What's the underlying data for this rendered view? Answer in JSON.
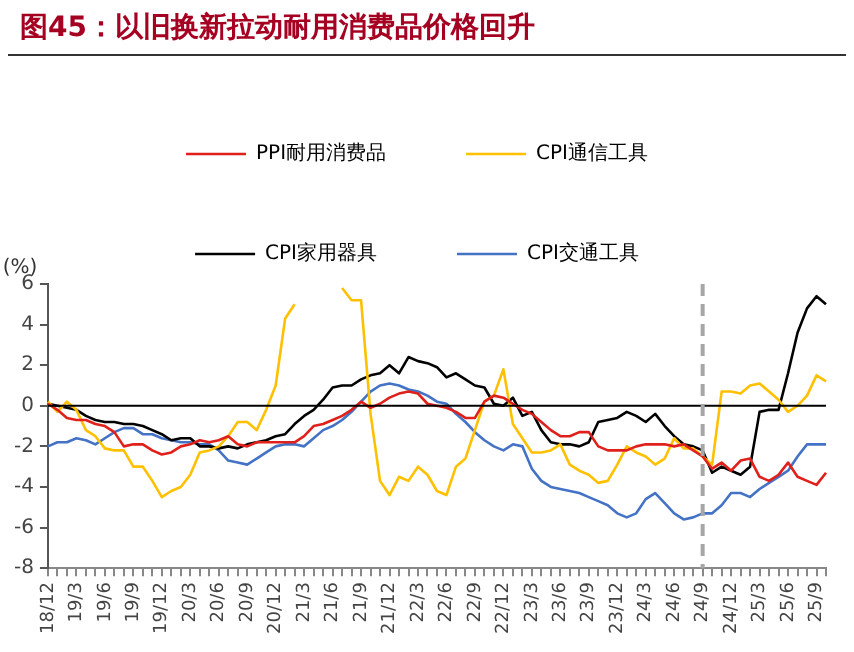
{
  "chart_data": {
    "type": "line",
    "title": "图45：以旧换新拉动耐用消费品价格回升",
    "ylabel": "(%)",
    "categories": [
      "18/12",
      null,
      null,
      "19/3",
      null,
      null,
      "19/6",
      null,
      null,
      "19/9",
      null,
      null,
      "19/12",
      null,
      null,
      "20/3",
      null,
      null,
      "20/6",
      null,
      null,
      "20/9",
      null,
      null,
      "20/12",
      null,
      null,
      "21/3",
      null,
      null,
      "21/6",
      null,
      null,
      "21/9",
      null,
      null,
      "21/12",
      null,
      null,
      "22/3",
      null,
      null,
      "22/6",
      null,
      null,
      "22/9",
      null,
      null,
      "22/12",
      null,
      null,
      "23/3",
      null,
      null,
      "23/6",
      null,
      null,
      "23/9",
      null,
      null,
      "23/12",
      null,
      null,
      "24/3",
      null,
      null,
      "24/6",
      null,
      null,
      "24/9",
      null,
      null,
      "24/12",
      null,
      null,
      "25/3",
      null,
      null,
      "25/6",
      null,
      null,
      "25/9",
      null
    ],
    "series": [
      {
        "name": "PPI耐用消费品",
        "color": "#e0201b",
        "values": [
          0.1,
          -0.2,
          -0.6,
          -0.7,
          -0.7,
          -0.9,
          -1.0,
          -1.3,
          -2.0,
          -1.9,
          -1.9,
          -2.2,
          -2.4,
          -2.3,
          -2.0,
          -1.9,
          -1.7,
          -1.8,
          -1.7,
          -1.5,
          -1.9,
          -2.0,
          -1.8,
          -1.8,
          -1.8,
          -1.8,
          -1.8,
          -1.5,
          -1.0,
          -0.9,
          -0.7,
          -0.5,
          -0.2,
          0.2,
          -0.1,
          0.1,
          0.4,
          0.6,
          0.7,
          0.6,
          0.1,
          0.0,
          -0.1,
          -0.3,
          -0.6,
          -0.6,
          0.2,
          0.5,
          0.4,
          0.1,
          -0.2,
          -0.4,
          -0.8,
          -1.2,
          -1.5,
          -1.5,
          -1.3,
          -1.3,
          -2.0,
          -2.2,
          -2.2,
          -2.2,
          -2.0,
          -1.9,
          -1.9,
          -1.9,
          -2.0,
          -1.9,
          -2.2,
          -2.5,
          -3.1,
          -2.8,
          -3.2,
          -2.7,
          -2.6,
          -3.5,
          -3.7,
          -3.4,
          -2.8,
          -3.5,
          -3.7,
          -3.9,
          -3.3
        ]
      },
      {
        "name": "CPI通信工具",
        "color": "#ffc000",
        "values": [
          0.2,
          -0.3,
          0.2,
          -0.2,
          -1.2,
          -1.5,
          -2.1,
          -2.2,
          -2.2,
          -3.0,
          -3.0,
          -3.7,
          -4.5,
          -4.2,
          -4.0,
          -3.4,
          -2.3,
          -2.2,
          -2.0,
          -1.5,
          -0.8,
          -0.8,
          -1.2,
          -0.2,
          1.0,
          4.3,
          5.0,
          null,
          null,
          null,
          null,
          5.8,
          5.2,
          5.2,
          -0.4,
          -3.7,
          -4.4,
          -3.5,
          -3.7,
          -3.0,
          -3.4,
          -4.2,
          -4.4,
          -3.0,
          -2.6,
          -1.2,
          0.2,
          0.5,
          1.8,
          -0.9,
          -1.6,
          -2.3,
          -2.3,
          -2.2,
          -1.9,
          -2.9,
          -3.2,
          -3.4,
          -3.8,
          -3.7,
          -2.9,
          -2.0,
          -2.3,
          -2.5,
          -2.9,
          -2.6,
          -1.6,
          -2.1,
          -2.1,
          -2.5,
          -2.9,
          0.7,
          0.7,
          0.6,
          1.0,
          1.1,
          0.7,
          0.3,
          -0.3,
          0.0,
          0.5,
          1.5,
          1.2
        ]
      },
      {
        "name": "CPI家用器具",
        "color": "#000000",
        "values": [
          0.1,
          0.0,
          -0.1,
          -0.2,
          -0.5,
          -0.7,
          -0.8,
          -0.8,
          -0.9,
          -0.9,
          -1.0,
          -1.2,
          -1.4,
          -1.7,
          -1.6,
          -1.6,
          -2.0,
          -2.0,
          -2.1,
          -2.0,
          -2.1,
          -1.9,
          -1.8,
          -1.7,
          -1.5,
          -1.4,
          -0.9,
          -0.5,
          -0.2,
          0.3,
          0.9,
          1.0,
          1.0,
          1.3,
          1.5,
          1.6,
          2.0,
          1.6,
          2.4,
          2.2,
          2.1,
          1.9,
          1.4,
          1.6,
          1.3,
          1.0,
          0.9,
          0.1,
          0.0,
          0.4,
          -0.5,
          -0.3,
          -1.2,
          -1.8,
          -1.9,
          -1.9,
          -2.0,
          -1.8,
          -0.8,
          -0.7,
          -0.6,
          -0.3,
          -0.5,
          -0.8,
          -0.4,
          -1.0,
          -1.5,
          -1.9,
          -2.0,
          -2.2,
          -3.3,
          -3.0,
          -3.2,
          -3.4,
          -3.0,
          -0.3,
          -0.2,
          -0.2,
          1.6,
          3.6,
          4.8,
          5.4,
          5.0
        ]
      },
      {
        "name": "CPI交通工具",
        "color": "#4472c4",
        "values": [
          -2.0,
          -1.8,
          -1.8,
          -1.6,
          -1.7,
          -1.9,
          -1.6,
          -1.3,
          -1.1,
          -1.1,
          -1.4,
          -1.4,
          -1.6,
          -1.7,
          -1.8,
          -1.8,
          -1.9,
          -1.9,
          -2.2,
          -2.7,
          -2.8,
          -2.9,
          -2.6,
          -2.3,
          -2.0,
          -1.9,
          -1.9,
          -2.0,
          -1.6,
          -1.2,
          -1.0,
          -0.7,
          -0.3,
          0.2,
          0.7,
          1.0,
          1.1,
          1.0,
          0.8,
          0.7,
          0.5,
          0.2,
          0.1,
          -0.4,
          -0.8,
          -1.3,
          -1.7,
          -2.0,
          -2.2,
          -1.9,
          -2.0,
          -3.1,
          -3.7,
          -4.0,
          -4.1,
          -4.2,
          -4.3,
          -4.5,
          -4.7,
          -4.9,
          -5.3,
          -5.5,
          -5.3,
          -4.6,
          -4.3,
          -4.8,
          -5.3,
          -5.6,
          -5.5,
          -5.3,
          -5.3,
          -4.9,
          -4.3,
          -4.3,
          -4.5,
          -4.1,
          -3.8,
          -3.5,
          -3.2,
          -2.5,
          -1.9,
          -1.9,
          -1.9
        ]
      }
    ],
    "ylim": [
      -8,
      6
    ],
    "yticks": [
      -8,
      -6,
      -4,
      -2,
      0,
      2,
      4,
      6
    ],
    "ref_lines": [
      {
        "axis": "x",
        "value": "24/9",
        "color": "#a6a6a6",
        "line_style": "dashed"
      }
    ],
    "legend": "top",
    "marker": "none",
    "line_style": "solid",
    "grid": false
  }
}
